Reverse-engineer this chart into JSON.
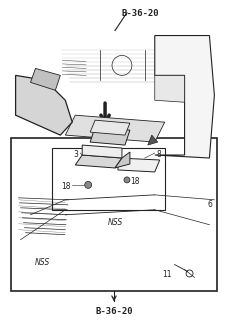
{
  "bg_color": "#ffffff",
  "line_color": "#222222",
  "fig_width": 2.29,
  "fig_height": 3.2,
  "dpi": 100,
  "top_ref": "B-36-20",
  "bottom_ref": "B-36-20",
  "labels": {
    "part_3": "3",
    "part_8": "8",
    "part_18a": "18",
    "part_18b": "18",
    "part_6": "6",
    "part_11": "11",
    "nss1": "NSS",
    "nss2": "NSS"
  }
}
